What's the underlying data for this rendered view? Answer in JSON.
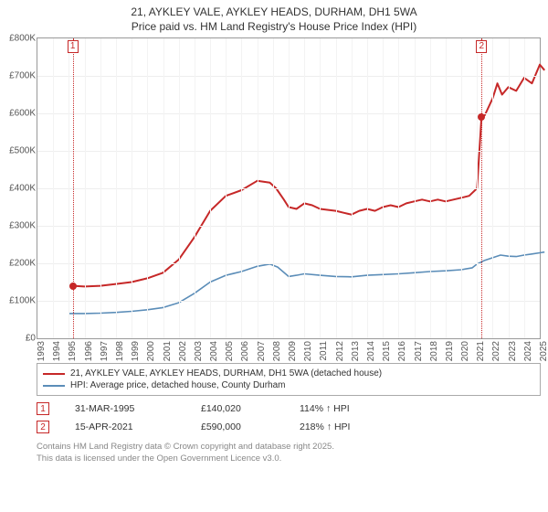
{
  "title": {
    "line1": "21, AYKLEY VALE, AYKLEY HEADS, DURHAM, DH1 5WA",
    "line2": "Price paid vs. HM Land Registry's House Price Index (HPI)"
  },
  "chart": {
    "type": "line",
    "background_color": "#ffffff",
    "grid_color": "#eeeeee",
    "x_grid_color": "#f3f3f3",
    "border_color": "#999999",
    "label_color": "#555555",
    "label_fontsize": 10,
    "ylim": [
      0,
      800000
    ],
    "ytick_step": 100000,
    "y_prefix": "£",
    "y_suffix_k": "K",
    "x_years": [
      1993,
      1994,
      1995,
      1996,
      1997,
      1998,
      1999,
      2000,
      2001,
      2002,
      2003,
      2004,
      2005,
      2006,
      2007,
      2008,
      2009,
      2010,
      2011,
      2012,
      2013,
      2014,
      2015,
      2016,
      2017,
      2018,
      2019,
      2020,
      2021,
      2022,
      2023,
      2024,
      2025
    ],
    "series": [
      {
        "name": "property",
        "legend_label": "21, AYKLEY VALE, AYKLEY HEADS, DURHAM, DH1 5WA (detached house)",
        "color": "#c62828",
        "line_width": 2,
        "points": [
          [
            1995.25,
            140020
          ],
          [
            1996,
            138000
          ],
          [
            1997,
            140000
          ],
          [
            1998,
            145000
          ],
          [
            1999,
            150000
          ],
          [
            2000,
            160000
          ],
          [
            2001,
            175000
          ],
          [
            2002,
            210000
          ],
          [
            2003,
            270000
          ],
          [
            2004,
            340000
          ],
          [
            2005,
            380000
          ],
          [
            2006,
            395000
          ],
          [
            2007,
            420000
          ],
          [
            2007.8,
            415000
          ],
          [
            2008.2,
            400000
          ],
          [
            2008.7,
            370000
          ],
          [
            2009,
            350000
          ],
          [
            2009.5,
            345000
          ],
          [
            2010,
            360000
          ],
          [
            2010.5,
            355000
          ],
          [
            2011,
            345000
          ],
          [
            2012,
            340000
          ],
          [
            2012.5,
            335000
          ],
          [
            2013,
            330000
          ],
          [
            2013.5,
            340000
          ],
          [
            2014,
            345000
          ],
          [
            2014.5,
            340000
          ],
          [
            2015,
            350000
          ],
          [
            2015.5,
            355000
          ],
          [
            2016,
            350000
          ],
          [
            2016.5,
            360000
          ],
          [
            2017,
            365000
          ],
          [
            2017.5,
            370000
          ],
          [
            2018,
            365000
          ],
          [
            2018.5,
            370000
          ],
          [
            2019,
            365000
          ],
          [
            2019.5,
            370000
          ],
          [
            2020,
            375000
          ],
          [
            2020.5,
            380000
          ],
          [
            2021,
            400000
          ],
          [
            2021.29,
            590000
          ],
          [
            2021.5,
            595000
          ],
          [
            2022,
            640000
          ],
          [
            2022.3,
            680000
          ],
          [
            2022.6,
            650000
          ],
          [
            2023,
            670000
          ],
          [
            2023.5,
            660000
          ],
          [
            2024,
            695000
          ],
          [
            2024.5,
            680000
          ],
          [
            2025,
            730000
          ],
          [
            2025.3,
            715000
          ]
        ]
      },
      {
        "name": "hpi",
        "legend_label": "HPI: Average price, detached house, County Durham",
        "color": "#5b8db8",
        "line_width": 1.6,
        "points": [
          [
            1995,
            66000
          ],
          [
            1996,
            66000
          ],
          [
            1997,
            67000
          ],
          [
            1998,
            69000
          ],
          [
            1999,
            72000
          ],
          [
            2000,
            76000
          ],
          [
            2001,
            82000
          ],
          [
            2002,
            95000
          ],
          [
            2003,
            120000
          ],
          [
            2004,
            150000
          ],
          [
            2005,
            168000
          ],
          [
            2006,
            178000
          ],
          [
            2007,
            192000
          ],
          [
            2007.8,
            198000
          ],
          [
            2008.3,
            190000
          ],
          [
            2009,
            165000
          ],
          [
            2009.5,
            168000
          ],
          [
            2010,
            172000
          ],
          [
            2011,
            168000
          ],
          [
            2012,
            165000
          ],
          [
            2013,
            164000
          ],
          [
            2014,
            168000
          ],
          [
            2015,
            170000
          ],
          [
            2016,
            172000
          ],
          [
            2017,
            175000
          ],
          [
            2018,
            178000
          ],
          [
            2019,
            180000
          ],
          [
            2020,
            183000
          ],
          [
            2020.7,
            188000
          ],
          [
            2021,
            198000
          ],
          [
            2021.5,
            208000
          ],
          [
            2022,
            215000
          ],
          [
            2022.5,
            222000
          ],
          [
            2023,
            219000
          ],
          [
            2023.5,
            218000
          ],
          [
            2024,
            222000
          ],
          [
            2024.5,
            225000
          ],
          [
            2025,
            228000
          ],
          [
            2025.3,
            230000
          ]
        ]
      }
    ],
    "sale_vline_color": "#c62828",
    "sales": [
      {
        "num": "1",
        "year": 1995.25,
        "value": 140020
      },
      {
        "num": "2",
        "year": 2021.29,
        "value": 590000
      }
    ]
  },
  "legend": {
    "border_color": "#aaaaaa"
  },
  "sales_table": [
    {
      "num": "1",
      "date": "31-MAR-1995",
      "price": "£140,020",
      "pct": "114% ↑ HPI"
    },
    {
      "num": "2",
      "date": "15-APR-2021",
      "price": "£590,000",
      "pct": "218% ↑ HPI"
    }
  ],
  "attribution": {
    "line1": "Contains HM Land Registry data © Crown copyright and database right 2025.",
    "line2": "This data is licensed under the Open Government Licence v3.0."
  }
}
